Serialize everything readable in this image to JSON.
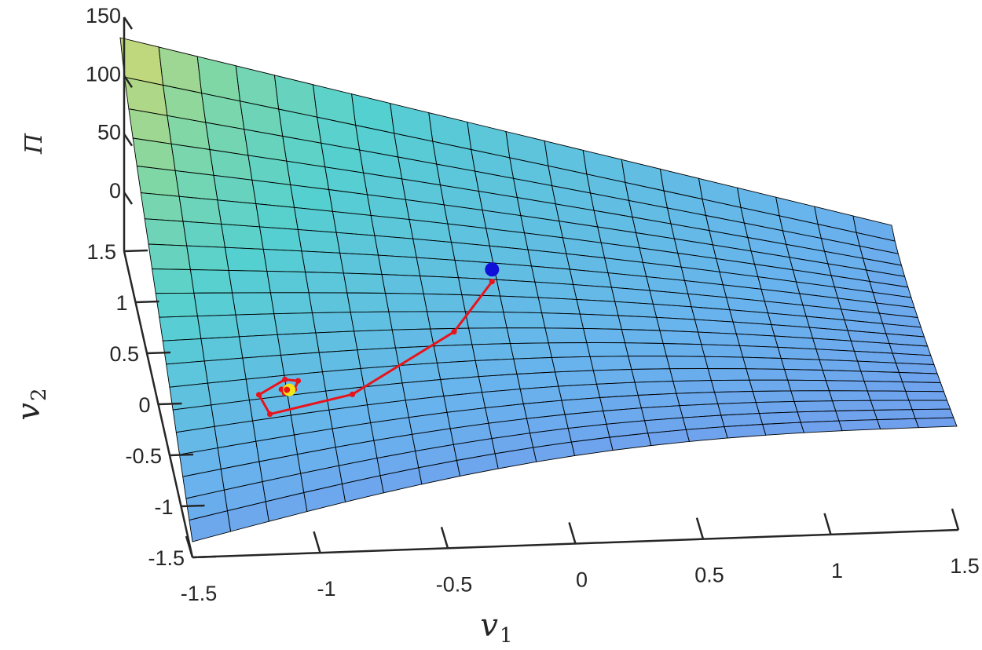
{
  "chart_data": {
    "type": "surface",
    "x_axis": {
      "label": "v",
      "label_sub": "1",
      "range": [
        -1.5,
        1.5
      ],
      "ticks": [
        -1.5,
        -1,
        -0.5,
        0,
        0.5,
        1,
        1.5
      ],
      "tick_labels": [
        "-1.5",
        "-1",
        "-0.5",
        "0",
        "0.5",
        "1",
        "1.5"
      ]
    },
    "y_axis": {
      "label": "v",
      "label_sub": "2",
      "range": [
        -1.5,
        1.5
      ],
      "ticks": [
        -1.5,
        -1,
        -0.5,
        0,
        0.5,
        1,
        1.5
      ],
      "tick_labels": [
        "-1.5",
        "-1",
        "-0.5",
        "0",
        "0.5",
        "1",
        "1.5"
      ]
    },
    "z_axis": {
      "label": "Π",
      "ticks": [
        0,
        50,
        100,
        150
      ],
      "tick_labels": [
        "0",
        "50",
        "100",
        "150"
      ]
    },
    "grid": false,
    "colormap": "parula",
    "surface": {
      "grid_size": [
        21,
        21
      ],
      "z_corners": {
        "v1_min_v2_max": 140,
        "v1_max_v2_max": 20,
        "v1_min_v2_min": 12,
        "v1_max_v2_min": 6
      }
    },
    "trajectory": {
      "color": "#e8141c",
      "points": [
        {
          "v1": -0.17,
          "v2": 0.28
        },
        {
          "v1": -0.36,
          "v2": -0.18
        },
        {
          "v1": -0.8,
          "v2": -0.65
        },
        {
          "v1": -1.13,
          "v2": -0.72
        },
        {
          "v1": -1.16,
          "v2": -0.57
        },
        {
          "v1": -1.05,
          "v2": -0.48
        },
        {
          "v1": -1.0,
          "v2": -0.5
        },
        {
          "v1": -1.02,
          "v2": -0.56
        },
        {
          "v1": -1.06,
          "v2": -0.58
        },
        {
          "v1": -1.07,
          "v2": -0.55
        },
        {
          "v1": -1.05,
          "v2": -0.54
        }
      ]
    },
    "start_point": {
      "v1": -0.16,
      "v2": 0.39,
      "color": "#1010d8"
    },
    "end_point": {
      "v1": -1.04,
      "v2": -0.56,
      "color": "#f2e614"
    }
  }
}
